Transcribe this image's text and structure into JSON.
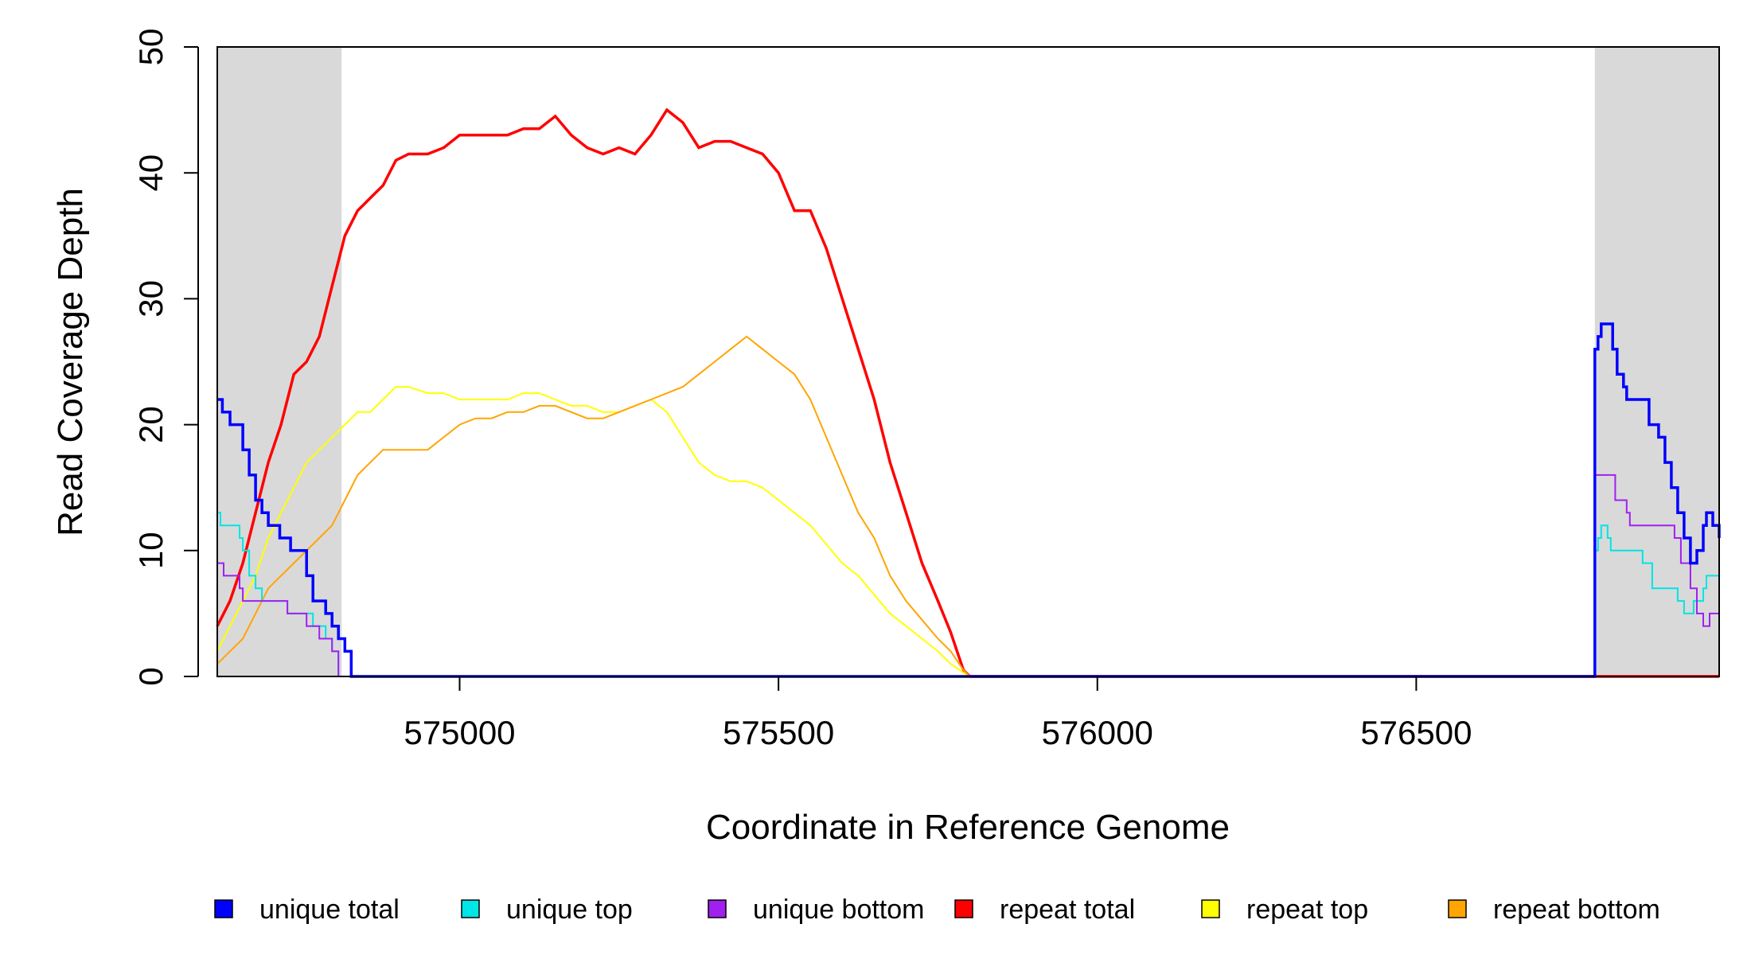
{
  "chart_data": {
    "type": "line",
    "title": "",
    "xlabel": "Coordinate in Reference Genome",
    "ylabel": "Read Coverage Depth",
    "xlim": [
      574620,
      576975
    ],
    "ylim": [
      0,
      50
    ],
    "x_ticks": [
      575000,
      575500,
      576000,
      576500
    ],
    "y_ticks": [
      0,
      10,
      20,
      30,
      40,
      50
    ],
    "grid": false,
    "legend_position": "bottom",
    "shaded_regions": [
      {
        "x0": 574620,
        "x1": 574815,
        "color": "#d9d9d9"
      },
      {
        "x0": 576780,
        "x1": 576975,
        "color": "#d9d9d9"
      }
    ],
    "series": [
      {
        "name": "unique total",
        "color": "#0000ff",
        "points": [
          [
            574620,
            22
          ],
          [
            574628,
            21
          ],
          [
            574640,
            20
          ],
          [
            574658,
            20
          ],
          [
            574660,
            18
          ],
          [
            574670,
            16
          ],
          [
            574680,
            14
          ],
          [
            574690,
            13
          ],
          [
            574700,
            12
          ],
          [
            574718,
            11
          ],
          [
            574735,
            10
          ],
          [
            574760,
            8
          ],
          [
            574770,
            6
          ],
          [
            574790,
            5
          ],
          [
            574800,
            4
          ],
          [
            574810,
            3
          ],
          [
            574820,
            2
          ],
          [
            574830,
            0
          ],
          [
            576780,
            0
          ],
          [
            576780,
            26
          ],
          [
            576785,
            27
          ],
          [
            576790,
            28
          ],
          [
            576805,
            28
          ],
          [
            576808,
            26
          ],
          [
            576815,
            24
          ],
          [
            576825,
            23
          ],
          [
            576830,
            22
          ],
          [
            576860,
            22
          ],
          [
            576865,
            20
          ],
          [
            576880,
            19
          ],
          [
            576890,
            17
          ],
          [
            576900,
            15
          ],
          [
            576910,
            13
          ],
          [
            576920,
            11
          ],
          [
            576930,
            9
          ],
          [
            576940,
            10
          ],
          [
            576950,
            12
          ],
          [
            576955,
            13
          ],
          [
            576965,
            12
          ],
          [
            576975,
            11
          ]
        ],
        "step": true
      },
      {
        "name": "unique top",
        "color": "#00e5e5",
        "points": [
          [
            574620,
            13
          ],
          [
            574625,
            12
          ],
          [
            574650,
            12
          ],
          [
            574655,
            11
          ],
          [
            574660,
            10
          ],
          [
            574670,
            8
          ],
          [
            574680,
            7
          ],
          [
            574690,
            6
          ],
          [
            574720,
            6
          ],
          [
            574730,
            5
          ],
          [
            574760,
            5
          ],
          [
            574770,
            4
          ],
          [
            574790,
            3
          ],
          [
            574800,
            2
          ],
          [
            574810,
            0
          ],
          [
            576780,
            0
          ],
          [
            576780,
            10
          ],
          [
            576785,
            11
          ],
          [
            576790,
            12
          ],
          [
            576800,
            11
          ],
          [
            576805,
            10
          ],
          [
            576850,
            10
          ],
          [
            576855,
            9
          ],
          [
            576870,
            7
          ],
          [
            576900,
            7
          ],
          [
            576910,
            6
          ],
          [
            576920,
            5
          ],
          [
            576935,
            6
          ],
          [
            576950,
            7
          ],
          [
            576955,
            8
          ],
          [
            576975,
            8
          ]
        ],
        "step": true
      },
      {
        "name": "unique bottom",
        "color": "#a020f0",
        "points": [
          [
            574620,
            9
          ],
          [
            574630,
            8
          ],
          [
            574650,
            8
          ],
          [
            574655,
            7
          ],
          [
            574660,
            6
          ],
          [
            574720,
            6
          ],
          [
            574730,
            5
          ],
          [
            574750,
            5
          ],
          [
            574760,
            4
          ],
          [
            574780,
            3
          ],
          [
            574800,
            2
          ],
          [
            574810,
            0
          ],
          [
            576780,
            0
          ],
          [
            576780,
            16
          ],
          [
            576810,
            16
          ],
          [
            576812,
            14
          ],
          [
            576830,
            13
          ],
          [
            576835,
            12
          ],
          [
            576840,
            12
          ],
          [
            576900,
            12
          ],
          [
            576905,
            11
          ],
          [
            576915,
            9
          ],
          [
            576930,
            7
          ],
          [
            576940,
            5
          ],
          [
            576950,
            4
          ],
          [
            576960,
            5
          ],
          [
            576970,
            5
          ],
          [
            576975,
            4
          ]
        ],
        "step": true
      },
      {
        "name": "repeat total",
        "color": "#ff0000",
        "points": [
          [
            574620,
            4
          ],
          [
            574640,
            6
          ],
          [
            574660,
            9
          ],
          [
            574680,
            13
          ],
          [
            574700,
            17
          ],
          [
            574720,
            20
          ],
          [
            574740,
            24
          ],
          [
            574760,
            25
          ],
          [
            574780,
            27
          ],
          [
            574800,
            31
          ],
          [
            574820,
            35
          ],
          [
            574840,
            37
          ],
          [
            574860,
            38
          ],
          [
            574880,
            39
          ],
          [
            574900,
            41
          ],
          [
            574920,
            41.5
          ],
          [
            574950,
            41.5
          ],
          [
            574975,
            42
          ],
          [
            575000,
            43
          ],
          [
            575025,
            43
          ],
          [
            575050,
            43
          ],
          [
            575075,
            43
          ],
          [
            575100,
            43.5
          ],
          [
            575125,
            43.5
          ],
          [
            575150,
            44.5
          ],
          [
            575175,
            43
          ],
          [
            575200,
            42
          ],
          [
            575225,
            41.5
          ],
          [
            575250,
            42
          ],
          [
            575275,
            41.5
          ],
          [
            575300,
            43
          ],
          [
            575325,
            45
          ],
          [
            575350,
            44
          ],
          [
            575375,
            42
          ],
          [
            575400,
            42.5
          ],
          [
            575425,
            42.5
          ],
          [
            575450,
            42
          ],
          [
            575475,
            41.5
          ],
          [
            575500,
            40
          ],
          [
            575525,
            37
          ],
          [
            575550,
            37
          ],
          [
            575575,
            34
          ],
          [
            575600,
            30
          ],
          [
            575625,
            26
          ],
          [
            575650,
            22
          ],
          [
            575675,
            17
          ],
          [
            575700,
            13
          ],
          [
            575725,
            9
          ],
          [
            575750,
            6
          ],
          [
            575770,
            3.5
          ],
          [
            575780,
            2
          ],
          [
            575790,
            0.5
          ],
          [
            575800,
            0
          ],
          [
            576975,
            0
          ]
        ],
        "step": false
      },
      {
        "name": "repeat top",
        "color": "#ffff00",
        "points": [
          [
            574620,
            2
          ],
          [
            574640,
            4
          ],
          [
            574660,
            6
          ],
          [
            574680,
            8
          ],
          [
            574700,
            11
          ],
          [
            574720,
            13
          ],
          [
            574740,
            15
          ],
          [
            574760,
            17
          ],
          [
            574780,
            18
          ],
          [
            574800,
            19
          ],
          [
            574820,
            20
          ],
          [
            574840,
            21
          ],
          [
            574860,
            21
          ],
          [
            574880,
            22
          ],
          [
            574900,
            23
          ],
          [
            574920,
            23
          ],
          [
            574950,
            22.5
          ],
          [
            574975,
            22.5
          ],
          [
            575000,
            22
          ],
          [
            575025,
            22
          ],
          [
            575050,
            22
          ],
          [
            575075,
            22
          ],
          [
            575100,
            22.5
          ],
          [
            575125,
            22.5
          ],
          [
            575150,
            22
          ],
          [
            575175,
            21.5
          ],
          [
            575200,
            21.5
          ],
          [
            575225,
            21
          ],
          [
            575250,
            21
          ],
          [
            575275,
            21.5
          ],
          [
            575300,
            22
          ],
          [
            575325,
            21
          ],
          [
            575350,
            19
          ],
          [
            575375,
            17
          ],
          [
            575400,
            16
          ],
          [
            575425,
            15.5
          ],
          [
            575450,
            15.5
          ],
          [
            575475,
            15
          ],
          [
            575500,
            14
          ],
          [
            575525,
            13
          ],
          [
            575550,
            12
          ],
          [
            575575,
            10.5
          ],
          [
            575600,
            9
          ],
          [
            575625,
            8
          ],
          [
            575650,
            6.5
          ],
          [
            575675,
            5
          ],
          [
            575700,
            4
          ],
          [
            575725,
            3
          ],
          [
            575750,
            2
          ],
          [
            575770,
            1
          ],
          [
            575790,
            0.3
          ],
          [
            575800,
            0
          ],
          [
            576975,
            0
          ]
        ],
        "step": false
      },
      {
        "name": "repeat bottom",
        "color": "#ffa500",
        "points": [
          [
            574620,
            1
          ],
          [
            574640,
            2
          ],
          [
            574660,
            3
          ],
          [
            574680,
            5
          ],
          [
            574700,
            7
          ],
          [
            574720,
            8
          ],
          [
            574740,
            9
          ],
          [
            574760,
            10
          ],
          [
            574780,
            11
          ],
          [
            574800,
            12
          ],
          [
            574820,
            14
          ],
          [
            574840,
            16
          ],
          [
            574860,
            17
          ],
          [
            574880,
            18
          ],
          [
            574900,
            18
          ],
          [
            574920,
            18
          ],
          [
            574950,
            18
          ],
          [
            574975,
            19
          ],
          [
            575000,
            20
          ],
          [
            575025,
            20.5
          ],
          [
            575050,
            20.5
          ],
          [
            575075,
            21
          ],
          [
            575100,
            21
          ],
          [
            575125,
            21.5
          ],
          [
            575150,
            21.5
          ],
          [
            575175,
            21
          ],
          [
            575200,
            20.5
          ],
          [
            575225,
            20.5
          ],
          [
            575250,
            21
          ],
          [
            575275,
            21.5
          ],
          [
            575300,
            22
          ],
          [
            575325,
            22.5
          ],
          [
            575350,
            23
          ],
          [
            575375,
            24
          ],
          [
            575400,
            25
          ],
          [
            575425,
            26
          ],
          [
            575450,
            27
          ],
          [
            575475,
            26
          ],
          [
            575500,
            25
          ],
          [
            575525,
            24
          ],
          [
            575550,
            22
          ],
          [
            575575,
            19
          ],
          [
            575600,
            16
          ],
          [
            575625,
            13
          ],
          [
            575650,
            11
          ],
          [
            575675,
            8
          ],
          [
            575700,
            6
          ],
          [
            575725,
            4.5
          ],
          [
            575750,
            3
          ],
          [
            575770,
            2
          ],
          [
            575790,
            0.5
          ],
          [
            575800,
            0
          ],
          [
            576975,
            0
          ]
        ],
        "step": false
      }
    ],
    "legend": [
      "unique total",
      "unique top",
      "unique bottom",
      "repeat total",
      "repeat top",
      "repeat bottom"
    ],
    "legend_colors": [
      "#0000ff",
      "#00e5e5",
      "#a020f0",
      "#ff0000",
      "#ffff00",
      "#ffa500"
    ]
  }
}
